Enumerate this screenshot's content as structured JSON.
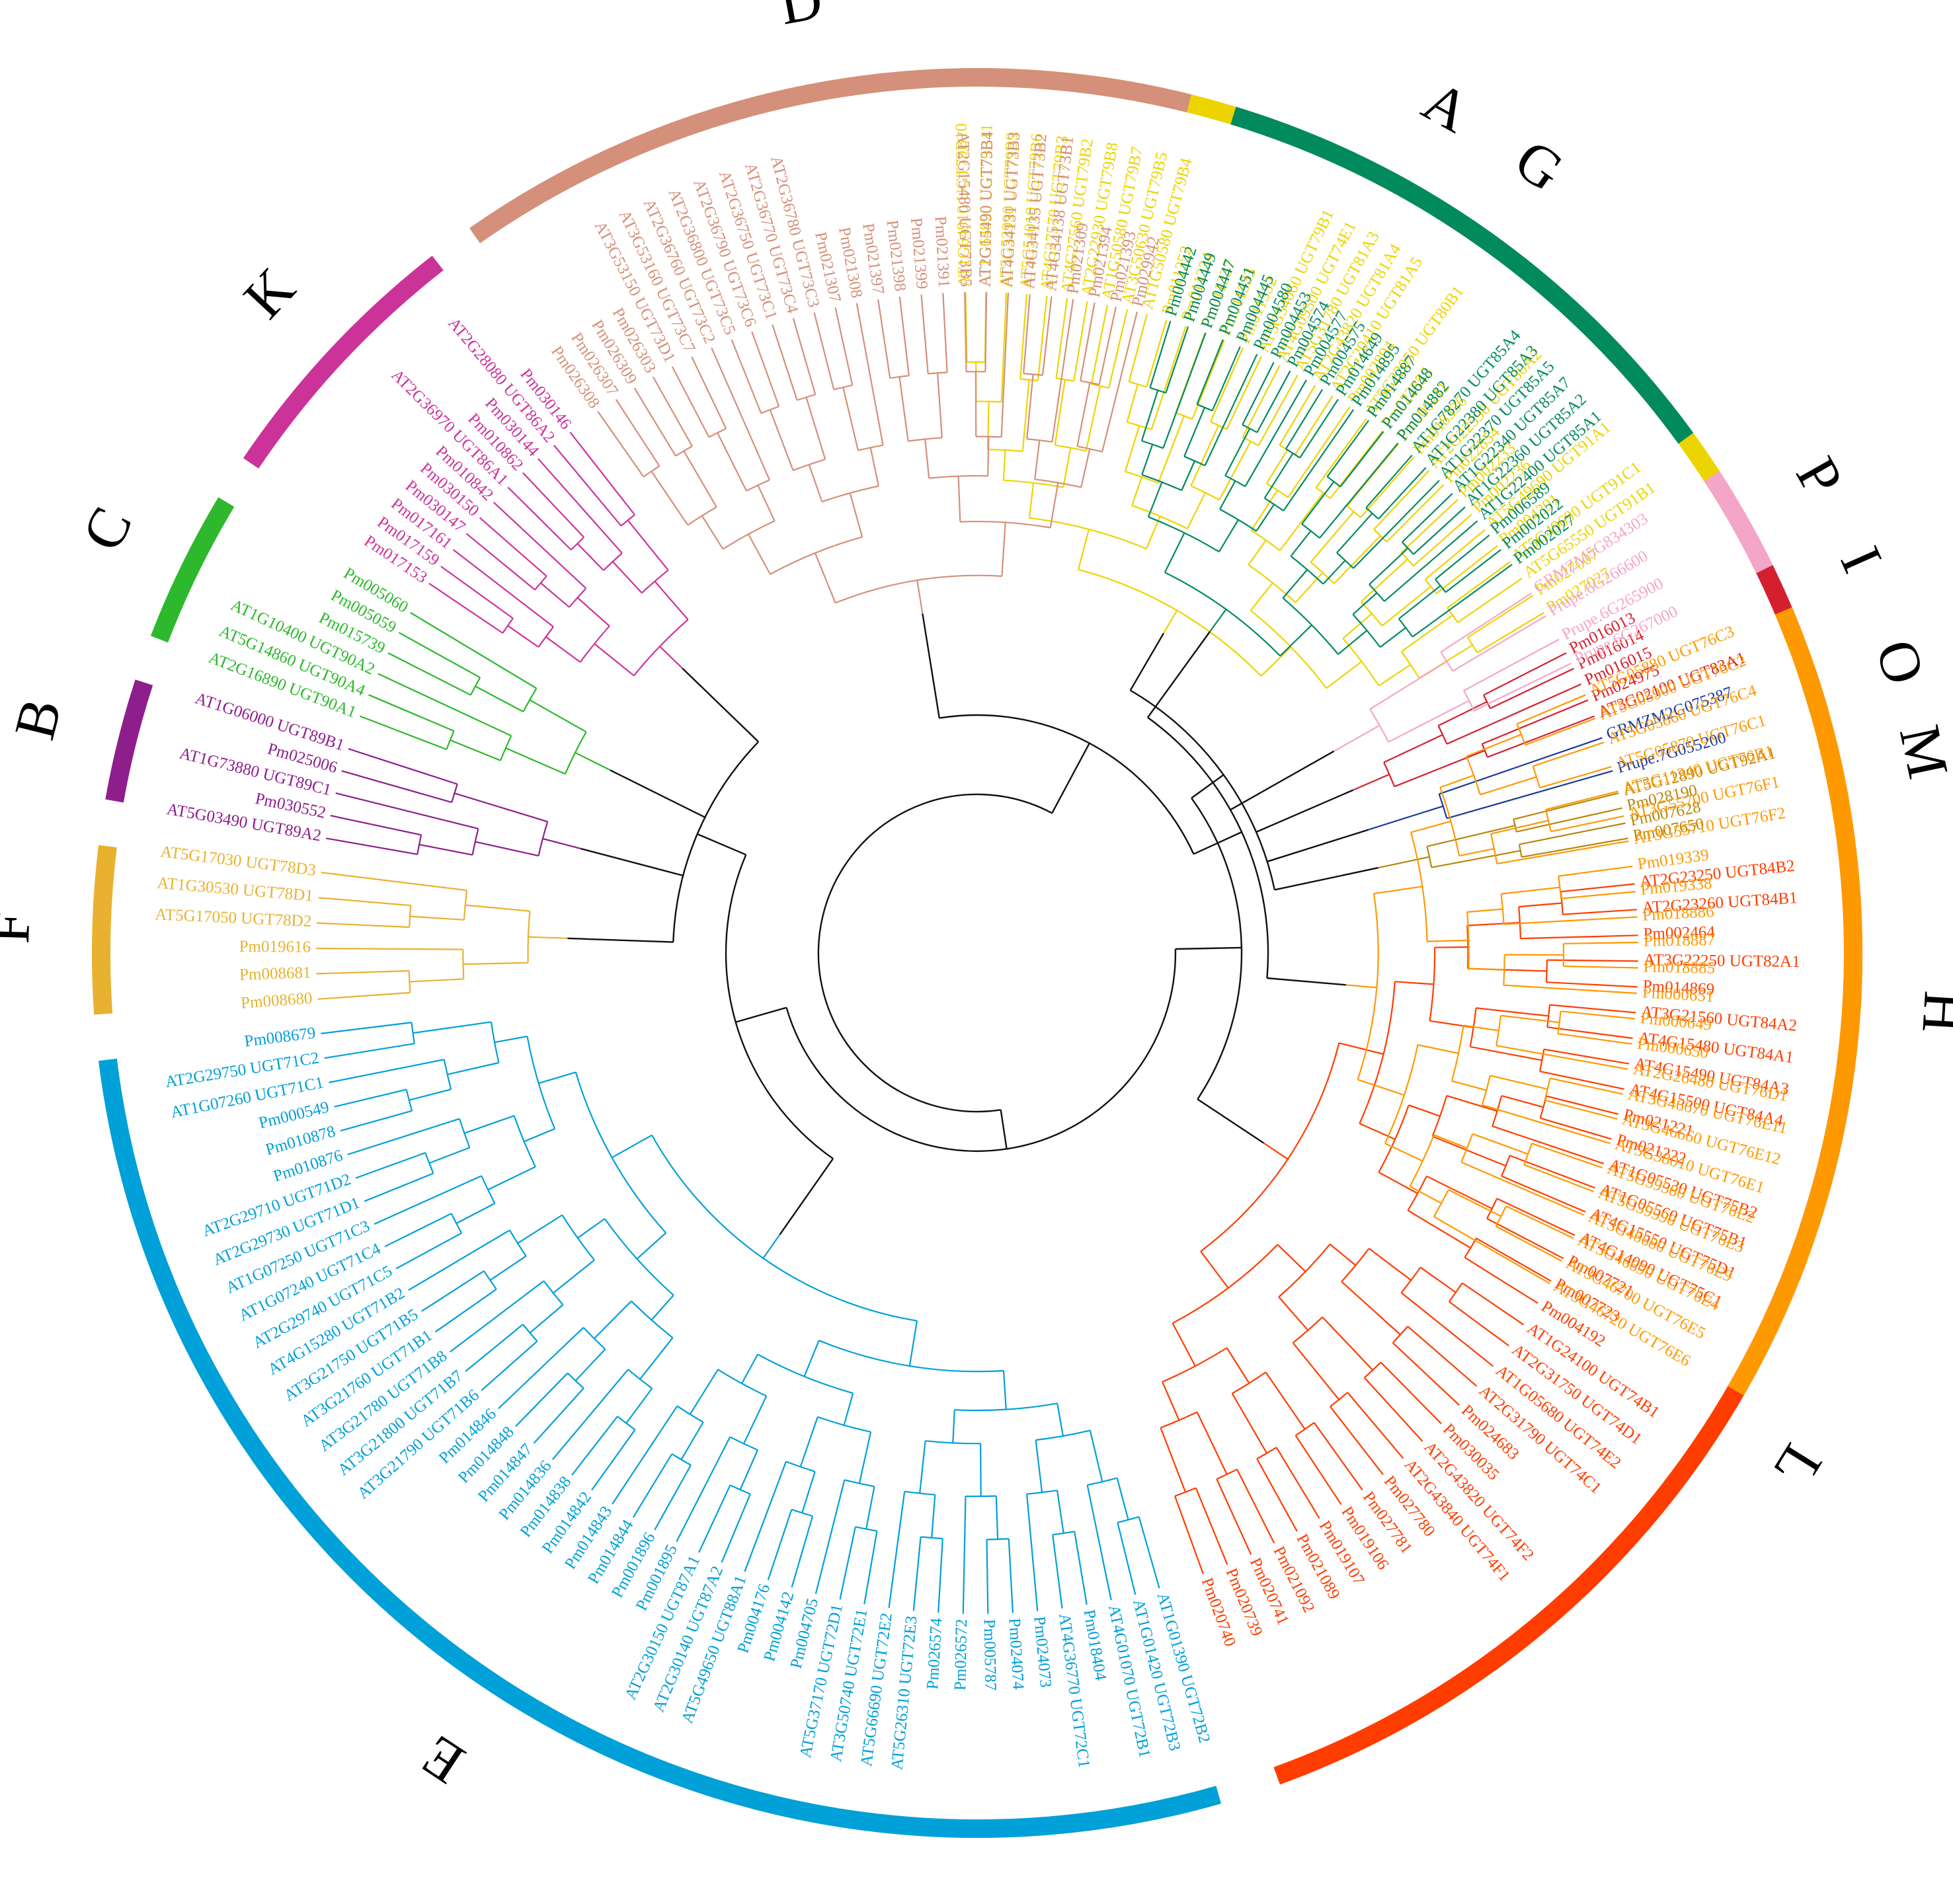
{
  "clades": [
    {
      "id": "A",
      "label": "A",
      "color": "#EDD400",
      "tips": [
        "AT1G64910 UGT79B10",
        "AT1G64920 UGT79B11",
        "AT5G53990 UGT79B9",
        "AT5G54010 UGT79B6",
        "AT4G27570 UGT79B3",
        "AT4G27560 UGT79B2",
        "AT2G22930 UGT79B8",
        "AT1G50580 UGT79B7",
        "AT3G50630 UGT79B5",
        "AT1G50580 UGT79B4",
        "Pm011352",
        "Pm011334",
        "Pm011337",
        "Pm011333",
        "Pm011332",
        "AT5G54060 UGT79B1",
        "AT4G09500 UGT74E1",
        "AT5G31780 UGT81A3",
        "AT2G43820 UGT81A4",
        "AT2G20410 UGT81A5",
        "Pm002894",
        "AT5G22050 UGT80B1",
        "Pm022855",
        "Pm000211",
        "Pm018336",
        "AT2G22590 UGT80A2",
        "Pm022854",
        "Pm002233",
        "Pm002236",
        "AT5G49690 UGT91A1",
        "Pm004391",
        "AT5G49690 UGT91C1",
        "AT5G65550 UGT91B1",
        "Pm027007",
        "Pm027027"
      ]
    },
    {
      "id": "I",
      "label": "I",
      "color": "#D4202E",
      "tips": [
        "Pm016013",
        "Pm016014",
        "Pm016015",
        "Pm024975",
        "AT3G02100 UGT83A1"
      ]
    },
    {
      "id": "O",
      "label": "O",
      "color": "#1C3A9C",
      "tips": [
        "GRMZM2G075387",
        "Prupe.7G055200"
      ]
    },
    {
      "id": "M",
      "label": "M",
      "color": "#B8860B",
      "tips": [
        "AT5G12890 UGT92A1",
        "Pm028190",
        "Pm007628",
        "Pm007650"
      ]
    },
    {
      "id": "L",
      "label": "L",
      "color": "#FF3D00",
      "tips": [
        "AT2G23250 UGT84B2",
        "AT2G23260 UGT84B1",
        "Pm002464",
        "AT3G22250 UGT82A1",
        "Pm014869",
        "AT3G21560 UGT84A2",
        "AT4G15480 UGT84A1",
        "AT4G15490 UGT84A3",
        "AT4G15500 UGT84A4",
        "Pm021221",
        "Pm021222",
        "AT1G05530 UGT75B2",
        "AT1G05560 UGT75B1",
        "AT4G15550 UGT75D1",
        "AT4G14090 UGT75C1",
        "Pm007721",
        "Pm007723",
        "Pm004192",
        "AT1G24100 UGT74B1",
        "AT2G31750 UGT74D1",
        "AT1G05680 UGT74E2",
        "AT2G31790 UGT74C1",
        "Pm024683",
        "Pm030035",
        "AT2G43820 UGT74F2",
        "AT2G43840 UGT74F1",
        "Pm027780",
        "Pm027781",
        "Pm019106",
        "Pm019107",
        "Pm021089",
        "Pm021092",
        "Pm020741",
        "Pm020739",
        "Pm020740"
      ]
    },
    {
      "id": "E",
      "label": "E",
      "color": "#00A0D8",
      "tips": [
        "AT1G01390 UGT72B2",
        "AT1G01420 UGT72B3",
        "AT4G01070 UGT72B1",
        "Pm018404",
        "AT4G36770 UGT72C1",
        "Pm024073",
        "Pm024074",
        "Pm005787",
        "Pm026572",
        "Pm026574",
        "AT5G26310 UGT72E3",
        "AT5G66690 UGT72E2",
        "AT3G50740 UGT72E1",
        "AT5G37170 UGT72D1",
        "Pm004705",
        "Pm004142",
        "Pm004176",
        "AT5G49650 UGT88A1",
        "AT2G30140 UGT87A2",
        "AT2G30150 UGT87A1",
        "Pm001895",
        "Pm001896",
        "Pm014844",
        "Pm014843",
        "Pm014842",
        "Pm014838",
        "Pm014836",
        "Pm014847",
        "Pm014848",
        "Pm014846",
        "AT3G21790 UGT71B6",
        "AT3G21800 UGT71B7",
        "AT3G21780 UGT71B8",
        "AT3G21760 UGT71B1",
        "AT3G21750 UGT71B5",
        "AT4G15280 UGT71B2",
        "AT2G29740 UGT71C5",
        "AT1G07240 UGT71C4",
        "AT1G07250 UGT71C3",
        "AT2G29730 UGT71D1",
        "AT2G29710 UGT71D2",
        "Pm010876",
        "Pm010878",
        "Pm000549",
        "AT1G07260 UGT71C1",
        "AT2G29750 UGT71C2",
        "Pm008679"
      ]
    },
    {
      "id": "F",
      "label": "F",
      "color": "#E8B230",
      "tips": [
        "Pm008680",
        "Pm008681",
        "Pm019616",
        "AT5G17050 UGT78D2",
        "AT1G30530 UGT78D1",
        "AT5G17030 UGT78D3"
      ]
    },
    {
      "id": "B",
      "label": "B",
      "color": "#8E1E8C",
      "tips": [
        "AT5G03490 UGT89A2",
        "Pm030552",
        "AT1G73880 UGT89C1",
        "Pm025006",
        "AT1G06000 UGT89B1"
      ]
    },
    {
      "id": "C",
      "label": "C",
      "color": "#2DB82D",
      "tips": [
        "AT2G16890 UGT90A1",
        "AT5G14860 UGT90A4",
        "AT1G10400 UGT90A2",
        "Pm015739",
        "Pm005059",
        "Pm005060"
      ]
    },
    {
      "id": "K",
      "label": "K",
      "color": "#CC3399",
      "tips": [
        "Pm017153",
        "Pm017159",
        "Pm017161",
        "Pm030147",
        "Pm030150",
        "Pm010842",
        "AT2G36970 UGT86A1",
        "Pm010862",
        "Pm030144",
        "AT2G28080 UGT86A2",
        "Pm030146"
      ]
    },
    {
      "id": "D",
      "label": "D",
      "color": "#D4907A",
      "tips": [
        "Pm026308",
        "Pm026307",
        "Pm026309",
        "Pm026303",
        "AT3G53150 UGT73D1",
        "AT3G53160 UGT73C7",
        "AT2G36760 UGT73C2",
        "AT2G36800 UGT73C5",
        "AT2G36790 UGT73C6",
        "AT2G36750 UGT73C1",
        "AT2G36770 UGT73C4",
        "AT2G36780 UGT73C3",
        "Pm021307",
        "Pm021308",
        "Pm021397",
        "Pm021398",
        "Pm021399",
        "Pm021391",
        "AT2G15480 UGT73B5",
        "AT2G15490 UGT73B4",
        "AT4G34131 UGT73B3",
        "AT4G34135 UGT73B2",
        "AT4G34138 UGT73B1",
        "Pm021309",
        "Pm021394",
        "Pm021393",
        "Pm029942"
      ]
    },
    {
      "id": "G",
      "label": "G",
      "color": "#008A5E",
      "tips": [
        "Pm004442",
        "Pm004449",
        "Pm004447",
        "Pm004451",
        "Pm004445",
        "Pm004580",
        "Pm004453",
        "Pm004574",
        "Pm004577",
        "Pm004575",
        "Pm014649",
        "Pm014895",
        "Pm014887",
        "Pm014648",
        "Pm014882",
        "AT1G78270 UGT85A4",
        "AT1G22380 UGT85A3",
        "AT1G22370 UGT85A5",
        "AT1G22340 UGT85A7",
        "AT1G22360 UGT85A2",
        "AT1G22400 UGT85A1",
        "Pm006589",
        "Pm002022",
        "Pm002027"
      ]
    },
    {
      "id": "P",
      "label": "P",
      "color": "#F4A6C8",
      "tips": [
        "GRMZM5G834303",
        "Prupe.6G266600",
        "Prupe.6G265900",
        "Prupe.6G267000"
      ]
    },
    {
      "id": "H",
      "label": "H",
      "color": "#FF9900",
      "tips": [
        "AT5G05880 UGT76C3",
        "AT5G05900 UGT76C2",
        "AT5G05860 UGT76C4",
        "AT5G05870 UGT76C1",
        "AT3G11340 UGT76B1",
        "AT3G55700 UGT76F1",
        "AT3G55710 UGT76F2",
        "Pm019339",
        "Pm019338",
        "Pm018886",
        "Pm018887",
        "Pm018885",
        "Pm000651",
        "Pm000649",
        "Pm000650",
        "AT2G26480 UGT76D1",
        "AT3G46670 UGT76E11",
        "AT3G46660 UGT76E12",
        "AT5G38010 UGT76E1",
        "AT5G59580 UGT76E2",
        "AT5G59590 UGT76E3",
        "AT3G46680 UGT76E9",
        "AT3G46690 UGT76E4",
        "AT3G46700 UGT76E5",
        "AT3G46720 UGT76E6"
      ]
    }
  ]
}
